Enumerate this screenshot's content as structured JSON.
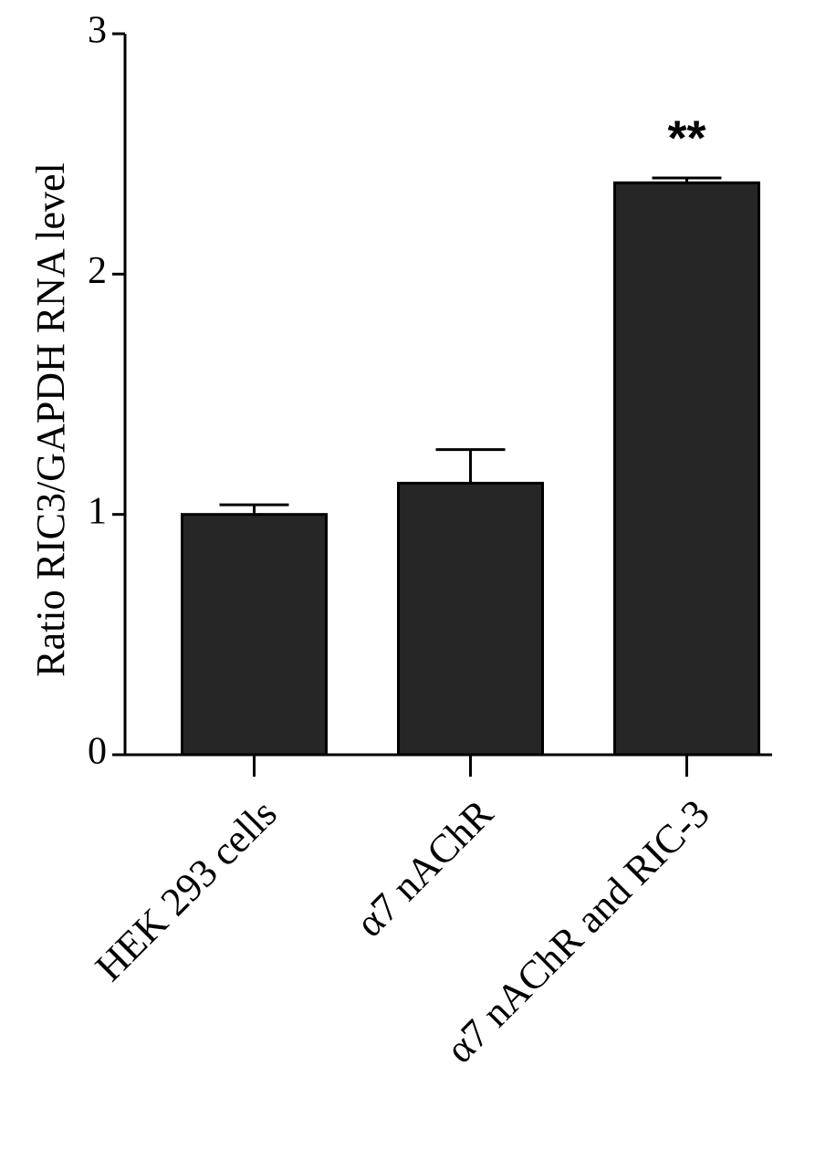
{
  "chart_data": {
    "type": "bar",
    "y_label": "Ratio RIC3/GAPDH RNA level",
    "categories": [
      "HEK 293 cells",
      "α7 nAChR",
      "α7 nAChR and RIC-3"
    ],
    "values": [
      1.0,
      1.13,
      2.38
    ],
    "errors": [
      0.04,
      0.14,
      0.02
    ],
    "significance": [
      null,
      null,
      "**"
    ],
    "color": "#262626",
    "ylim": [
      0,
      3
    ],
    "yticks": [
      0,
      1,
      2,
      3
    ],
    "grid": false
  }
}
